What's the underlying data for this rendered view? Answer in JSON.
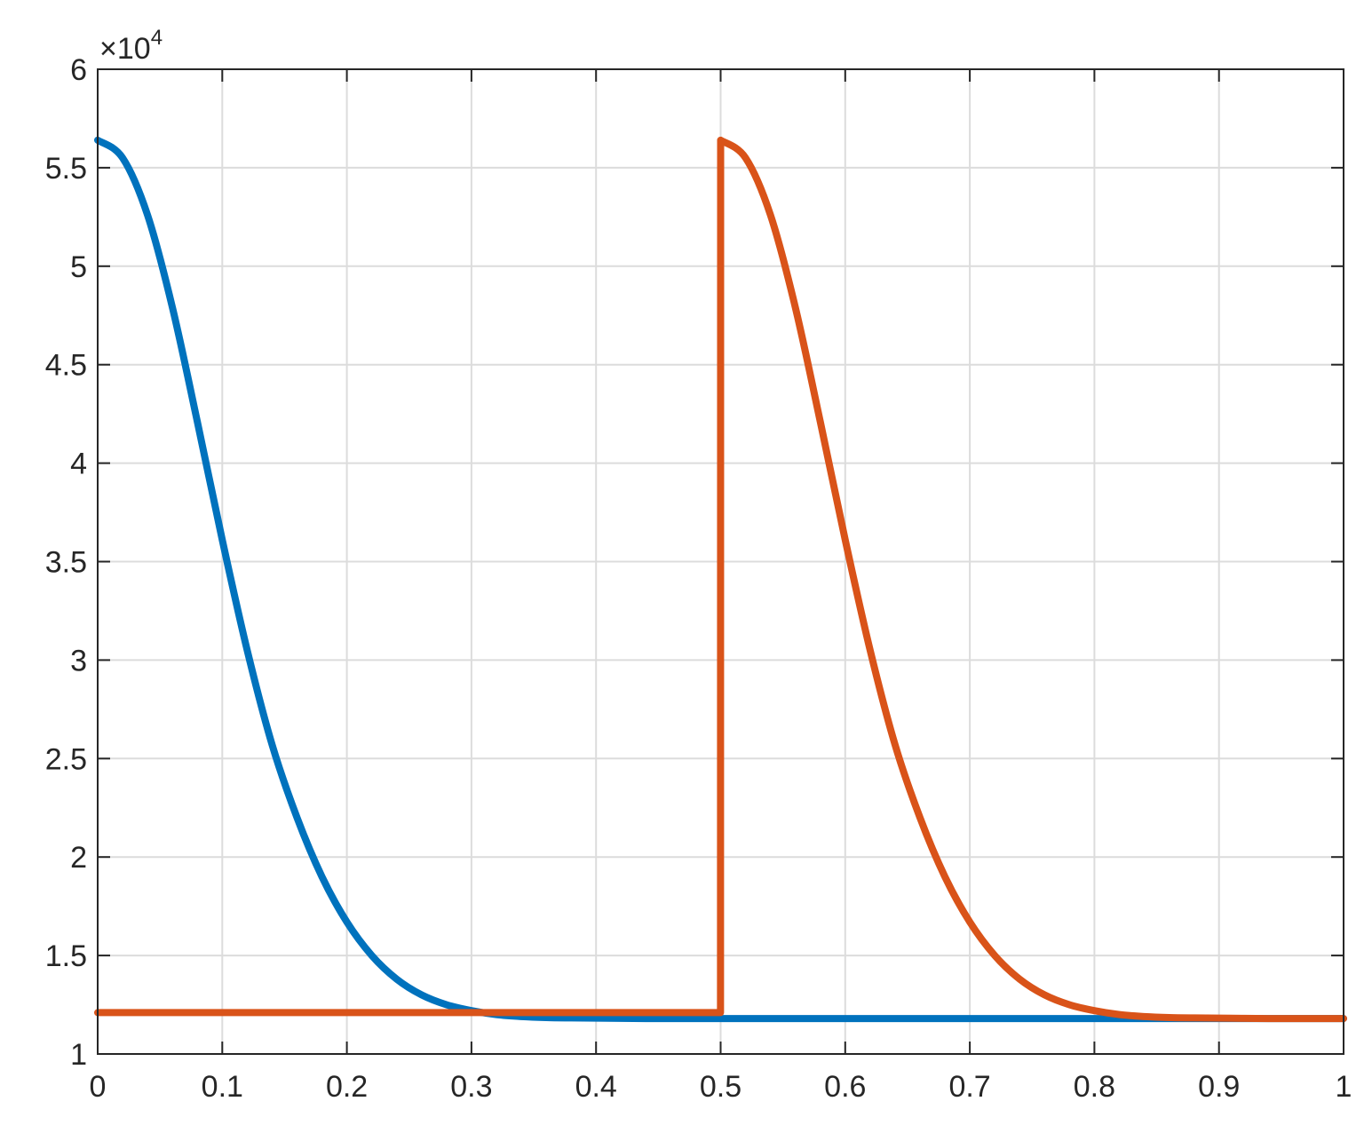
{
  "chart_data": {
    "type": "line",
    "title": "",
    "xlabel": "",
    "ylabel": "",
    "xlim": [
      0,
      1
    ],
    "ylim": [
      1,
      6
    ],
    "y_exponent_label": "×10",
    "y_exponent_power": "4",
    "xticks": [
      0,
      0.1,
      0.2,
      0.3,
      0.4,
      0.5,
      0.6,
      0.7,
      0.8,
      0.9,
      1
    ],
    "xtick_labels": [
      "0",
      "0.1",
      "0.2",
      "0.3",
      "0.4",
      "0.5",
      "0.6",
      "0.7",
      "0.8",
      "0.9",
      "1"
    ],
    "yticks": [
      1,
      1.5,
      2,
      2.5,
      3,
      3.5,
      4,
      4.5,
      5,
      5.5,
      6
    ],
    "ytick_labels": [
      "1",
      "1.5",
      "2",
      "2.5",
      "3",
      "3.5",
      "4",
      "4.5",
      "5",
      "5.5",
      "6"
    ],
    "grid": true,
    "series": [
      {
        "color": "#0072BD",
        "x": [
          0,
          0.02,
          0.04,
          0.06,
          0.08,
          0.1,
          0.12,
          0.14,
          0.16,
          0.18,
          0.2,
          0.22,
          0.24,
          0.26,
          0.28,
          0.3,
          0.32,
          0.34,
          0.36,
          0.38,
          0.4,
          0.42,
          0.44,
          0.46,
          0.5,
          0.6,
          0.7,
          0.8,
          0.9,
          1.0
        ],
        "y": [
          5.64,
          5.55,
          5.26,
          4.79,
          4.21,
          3.61,
          3.05,
          2.57,
          2.2,
          1.9,
          1.67,
          1.5,
          1.38,
          1.3,
          1.25,
          1.22,
          1.2,
          1.19,
          1.185,
          1.183,
          1.182,
          1.181,
          1.18,
          1.18,
          1.18,
          1.18,
          1.18,
          1.18,
          1.18,
          1.18
        ]
      },
      {
        "color": "#D95319",
        "x": [
          0,
          0.1,
          0.2,
          0.3,
          0.4,
          0.4999,
          0.5,
          0.52,
          0.54,
          0.56,
          0.58,
          0.6,
          0.62,
          0.64,
          0.66,
          0.68,
          0.7,
          0.72,
          0.74,
          0.76,
          0.78,
          0.8,
          0.82,
          0.84,
          0.86,
          0.88,
          0.9,
          0.92,
          0.94,
          0.96,
          0.98,
          1.0
        ],
        "y": [
          1.21,
          1.21,
          1.21,
          1.21,
          1.21,
          1.21,
          5.64,
          5.55,
          5.26,
          4.79,
          4.21,
          3.61,
          3.05,
          2.57,
          2.2,
          1.9,
          1.67,
          1.5,
          1.38,
          1.3,
          1.25,
          1.22,
          1.2,
          1.19,
          1.185,
          1.183,
          1.182,
          1.181,
          1.18,
          1.18,
          1.18,
          1.18
        ]
      }
    ]
  }
}
